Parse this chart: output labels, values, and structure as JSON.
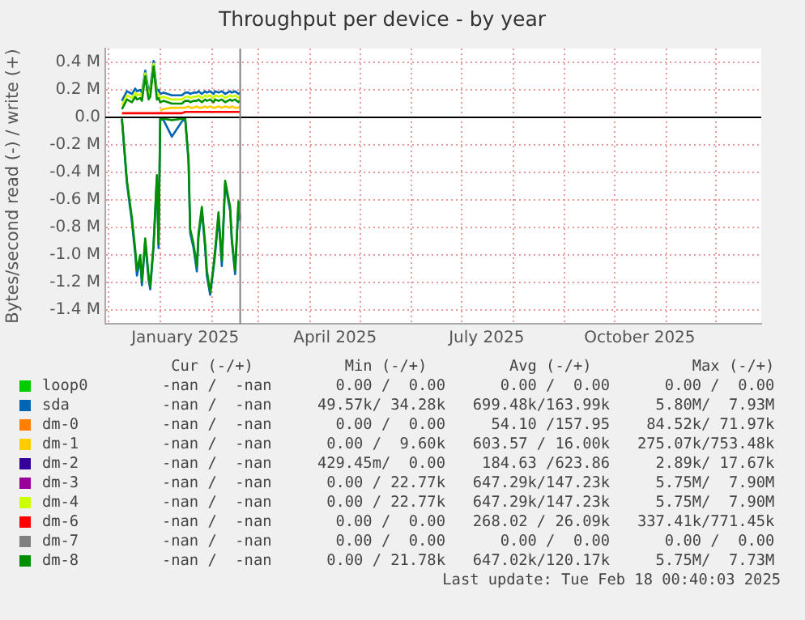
{
  "chart_data": {
    "type": "line",
    "title": "Throughput per device - by year",
    "ylabel": "Bytes/second read (-) / write (+)",
    "x": [
      "2024-12-09",
      "2024-12-12",
      "2024-12-15",
      "2024-12-17",
      "2024-12-18",
      "2024-12-20",
      "2024-12-21",
      "2024-12-23",
      "2024-12-25",
      "2024-12-26",
      "2024-12-28",
      "2024-12-30",
      "2024-12-31",
      "2025-01-01",
      "2025-01-03",
      "2025-01-08",
      "2025-01-14",
      "2025-01-16",
      "2025-01-18",
      "2025-01-19",
      "2025-01-21",
      "2025-01-23",
      "2025-01-24",
      "2025-01-26",
      "2025-01-28",
      "2025-01-29",
      "2025-01-31",
      "2025-02-02",
      "2025-02-03",
      "2025-02-05",
      "2025-02-07",
      "2025-02-09",
      "2025-02-12",
      "2025-02-13",
      "2025-02-15",
      "2025-02-17",
      "2025-02-18"
    ],
    "series": [
      {
        "name": "loop0",
        "color": "#00cc00",
        "values": [
          null,
          null,
          null,
          null,
          null,
          null,
          null,
          null,
          null,
          null,
          null,
          null,
          null,
          null,
          null,
          null,
          null,
          null,
          null,
          null,
          null,
          null,
          null,
          null,
          null,
          null,
          null,
          null,
          null,
          null,
          null,
          null,
          null,
          null,
          null,
          null,
          null
        ]
      },
      {
        "name": "sda",
        "color": "#0066b3",
        "values": [
          0.12,
          0.19,
          0.17,
          0.21,
          0.19,
          0.2,
          0.18,
          0.34,
          0.19,
          0.21,
          0.41,
          0.19,
          0.2,
          0.17,
          0.18,
          0.16,
          0.16,
          0.18,
          0.18,
          0.17,
          0.18,
          0.18,
          0.19,
          0.17,
          0.19,
          0.18,
          0.19,
          0.17,
          0.19,
          0.18,
          0.19,
          0.17,
          0.19,
          0.18,
          0.19,
          0.17,
          0.18
        ]
      },
      {
        "color": "#0066b3",
        "values": [
          -0.01,
          -0.48,
          -0.76,
          -1.0,
          -1.15,
          -1.03,
          -1.22,
          -0.9,
          -1.18,
          -1.25,
          -0.94,
          -0.44,
          -0.95,
          -0.01,
          -0.02,
          -0.14,
          -0.03,
          -0.01,
          -0.32,
          -0.84,
          -0.95,
          -1.12,
          -0.87,
          -0.68,
          -0.95,
          -1.15,
          -1.29,
          -1.1,
          -0.99,
          -0.72,
          -1.08,
          -0.48,
          -0.68,
          -0.9,
          -1.14,
          -0.63,
          -0.75
        ]
      },
      {
        "name": "dm-0",
        "color": "#ff8000",
        "values": [
          null,
          null,
          null,
          null,
          null,
          null,
          null,
          null,
          null,
          null,
          null,
          null,
          null,
          null,
          null,
          null,
          null,
          null,
          null,
          null,
          null,
          null,
          null,
          null,
          null,
          null,
          null,
          null,
          null,
          null,
          null,
          null,
          null,
          null,
          null,
          null,
          null
        ]
      },
      {
        "name": "dm-1",
        "color": "#ffcc00",
        "values": [
          null,
          null,
          null,
          null,
          null,
          null,
          null,
          null,
          null,
          null,
          null,
          null,
          null,
          0.05,
          0.06,
          0.07,
          0.07,
          0.07,
          0.08,
          0.07,
          0.07,
          0.08,
          0.07,
          0.07,
          0.08,
          0.07,
          0.08,
          0.07,
          0.07,
          0.08,
          0.07,
          0.08,
          0.07,
          0.08,
          0.07,
          0.07,
          0.08
        ]
      },
      {
        "name": "dm-2",
        "color": "#330099",
        "values": [
          null,
          null,
          null,
          null,
          null,
          null,
          null,
          null,
          null,
          null,
          null,
          null,
          null,
          null,
          null,
          null,
          null,
          null,
          null,
          null,
          null,
          null,
          null,
          null,
          null,
          null,
          null,
          null,
          null,
          null,
          null,
          null,
          null,
          null,
          null,
          null,
          null
        ]
      },
      {
        "name": "dm-3",
        "color": "#990099",
        "values": [
          null,
          null,
          null,
          null,
          null,
          null,
          null,
          null,
          null,
          null,
          null,
          null,
          null,
          null,
          null,
          null,
          null,
          null,
          null,
          null,
          null,
          null,
          null,
          null,
          null,
          null,
          null,
          null,
          null,
          null,
          null,
          null,
          null,
          null,
          null,
          null,
          null
        ]
      },
      {
        "name": "dm-4",
        "color": "#ccff00",
        "values": [
          0.09,
          0.16,
          0.14,
          0.18,
          0.16,
          0.17,
          0.15,
          0.32,
          0.16,
          0.18,
          0.39,
          0.16,
          0.17,
          0.14,
          0.15,
          0.13,
          0.13,
          0.15,
          0.15,
          0.14,
          0.15,
          0.15,
          0.16,
          0.14,
          0.16,
          0.15,
          0.16,
          0.14,
          0.16,
          0.15,
          0.16,
          0.14,
          0.16,
          0.15,
          0.16,
          0.14,
          0.15
        ]
      },
      {
        "name": "dm-6",
        "color": "#ff0000",
        "values": [
          0.03,
          0.03,
          0.03,
          0.03,
          0.03,
          0.03,
          0.03,
          0.03,
          0.03,
          0.03,
          0.03,
          0.03,
          0.03,
          0.03,
          0.03,
          0.03,
          0.03,
          0.04,
          0.04,
          0.04,
          0.04,
          0.04,
          0.04,
          0.04,
          0.04,
          0.04,
          0.04,
          0.04,
          0.04,
          0.04,
          0.04,
          0.04,
          0.04,
          0.04,
          0.04,
          0.04,
          0.04
        ]
      },
      {
        "name": "dm-7",
        "color": "#808080",
        "values": [
          null,
          null,
          null,
          null,
          null,
          null,
          null,
          null,
          null,
          null,
          null,
          null,
          null,
          null,
          null,
          null,
          null,
          null,
          null,
          null,
          null,
          null,
          null,
          null,
          null,
          null,
          null,
          null,
          null,
          null,
          null,
          null,
          null,
          null,
          null,
          null,
          null
        ]
      },
      {
        "name": "dm-8",
        "color": "#008f00",
        "values": [
          0.06,
          0.13,
          0.11,
          0.15,
          0.13,
          0.14,
          0.12,
          0.3,
          0.13,
          0.15,
          0.37,
          0.13,
          0.14,
          0.11,
          0.12,
          0.1,
          0.1,
          0.12,
          0.12,
          0.11,
          0.12,
          0.12,
          0.13,
          0.11,
          0.13,
          0.12,
          0.13,
          0.11,
          0.13,
          0.12,
          0.13,
          0.11,
          0.13,
          0.12,
          0.13,
          0.11,
          0.12
        ]
      },
      {
        "color": "#008f00",
        "values": [
          -0.01,
          -0.46,
          -0.73,
          -0.96,
          -1.11,
          -1.0,
          -1.19,
          -0.88,
          -1.15,
          -1.23,
          -0.92,
          -0.42,
          -0.92,
          -0.01,
          -0.01,
          -0.02,
          -0.01,
          -0.01,
          -0.3,
          -0.81,
          -0.92,
          -1.08,
          -0.84,
          -0.65,
          -0.92,
          -1.11,
          -1.27,
          -1.08,
          -0.96,
          -0.69,
          -1.04,
          -0.46,
          -0.65,
          -0.88,
          -1.11,
          -0.61,
          -0.73
        ]
      }
    ],
    "xlim": [
      "2024-11-29",
      "2025-12-28"
    ],
    "xticks": [
      {
        "value": "2024-12-01",
        "label": null
      },
      {
        "value": "2025-01-01",
        "label": null
      },
      {
        "value": "2025-01-16",
        "label": "January 2025"
      },
      {
        "value": "2025-02-01",
        "label": null
      },
      {
        "value": "2025-03-01",
        "label": null
      },
      {
        "value": "2025-04-01",
        "label": null
      },
      {
        "value": "2025-04-16",
        "label": "April 2025"
      },
      {
        "value": "2025-05-01",
        "label": null
      },
      {
        "value": "2025-06-01",
        "label": null
      },
      {
        "value": "2025-07-01",
        "label": null
      },
      {
        "value": "2025-07-16",
        "label": "July 2025"
      },
      {
        "value": "2025-08-01",
        "label": null
      },
      {
        "value": "2025-09-01",
        "label": null
      },
      {
        "value": "2025-10-01",
        "label": null
      },
      {
        "value": "2025-10-16",
        "label": "October 2025"
      },
      {
        "value": "2025-11-01",
        "label": null
      },
      {
        "value": "2025-12-01",
        "label": null
      }
    ],
    "ylim": [
      -1.5,
      0.5
    ],
    "yticks": [
      {
        "value": 0.4,
        "label": "0.4 M"
      },
      {
        "value": 0.2,
        "label": "0.2 M"
      },
      {
        "value": 0,
        "label": "0.0"
      },
      {
        "value": -0.2,
        "label": "-0.2 M"
      },
      {
        "value": -0.4,
        "label": "-0.4 M"
      },
      {
        "value": -0.6,
        "label": "-0.6 M"
      },
      {
        "value": -0.8,
        "label": "-0.8 M"
      },
      {
        "value": -1.0,
        "label": "-1.0 M"
      },
      {
        "value": -1.2,
        "label": "-1.2 M"
      },
      {
        "value": -1.4,
        "label": "-1.4 M"
      }
    ],
    "grid": true,
    "legend": "bottom",
    "marker": "none",
    "line_style": "solid",
    "ref_lines": [
      {
        "axis": "y",
        "value": 0,
        "color": "#000000"
      },
      {
        "axis": "x",
        "value": "2025-02-18T00:40",
        "color": "#808080"
      }
    ],
    "annotations": [
      " Cur (-/+)          Min (-/+)         Avg (-/+)           Max (-/+)",
      "-nan /  -nan       0.00 /  0.00      0.00 /  0.00      0.00 /  0.00",
      "-nan /  -nan     49.57k/ 34.28k   699.48k/163.99k     5.80M/  7.93M",
      "-nan /  -nan       0.00 /  0.00     54.10 /157.95    84.52k/ 71.97k",
      "-nan /  -nan      0.00 /  9.60k   603.57 / 16.00k   275.07k/753.48k",
      "-nan /  -nan     429.45m/  0.00    184.63 /623.86     2.89k/ 17.67k",
      "-nan /  -nan      0.00 / 22.77k   647.29k/147.23k     5.75M/  7.90M",
      "-nan /  -nan      0.00 / 22.77k   647.29k/147.23k     5.75M/  7.90M",
      "-nan /  -nan       0.00 /  0.00   268.02 / 26.09k   337.41k/771.45k",
      "-nan /  -nan       0.00 /  0.00      0.00 /  0.00      0.00 /  0.00",
      "-nan /  -nan      0.00 / 21.78k   647.02k/120.17k     5.75M/  7.73M",
      "Last update: Tue Feb 18 00:40:03 2025"
    ]
  }
}
